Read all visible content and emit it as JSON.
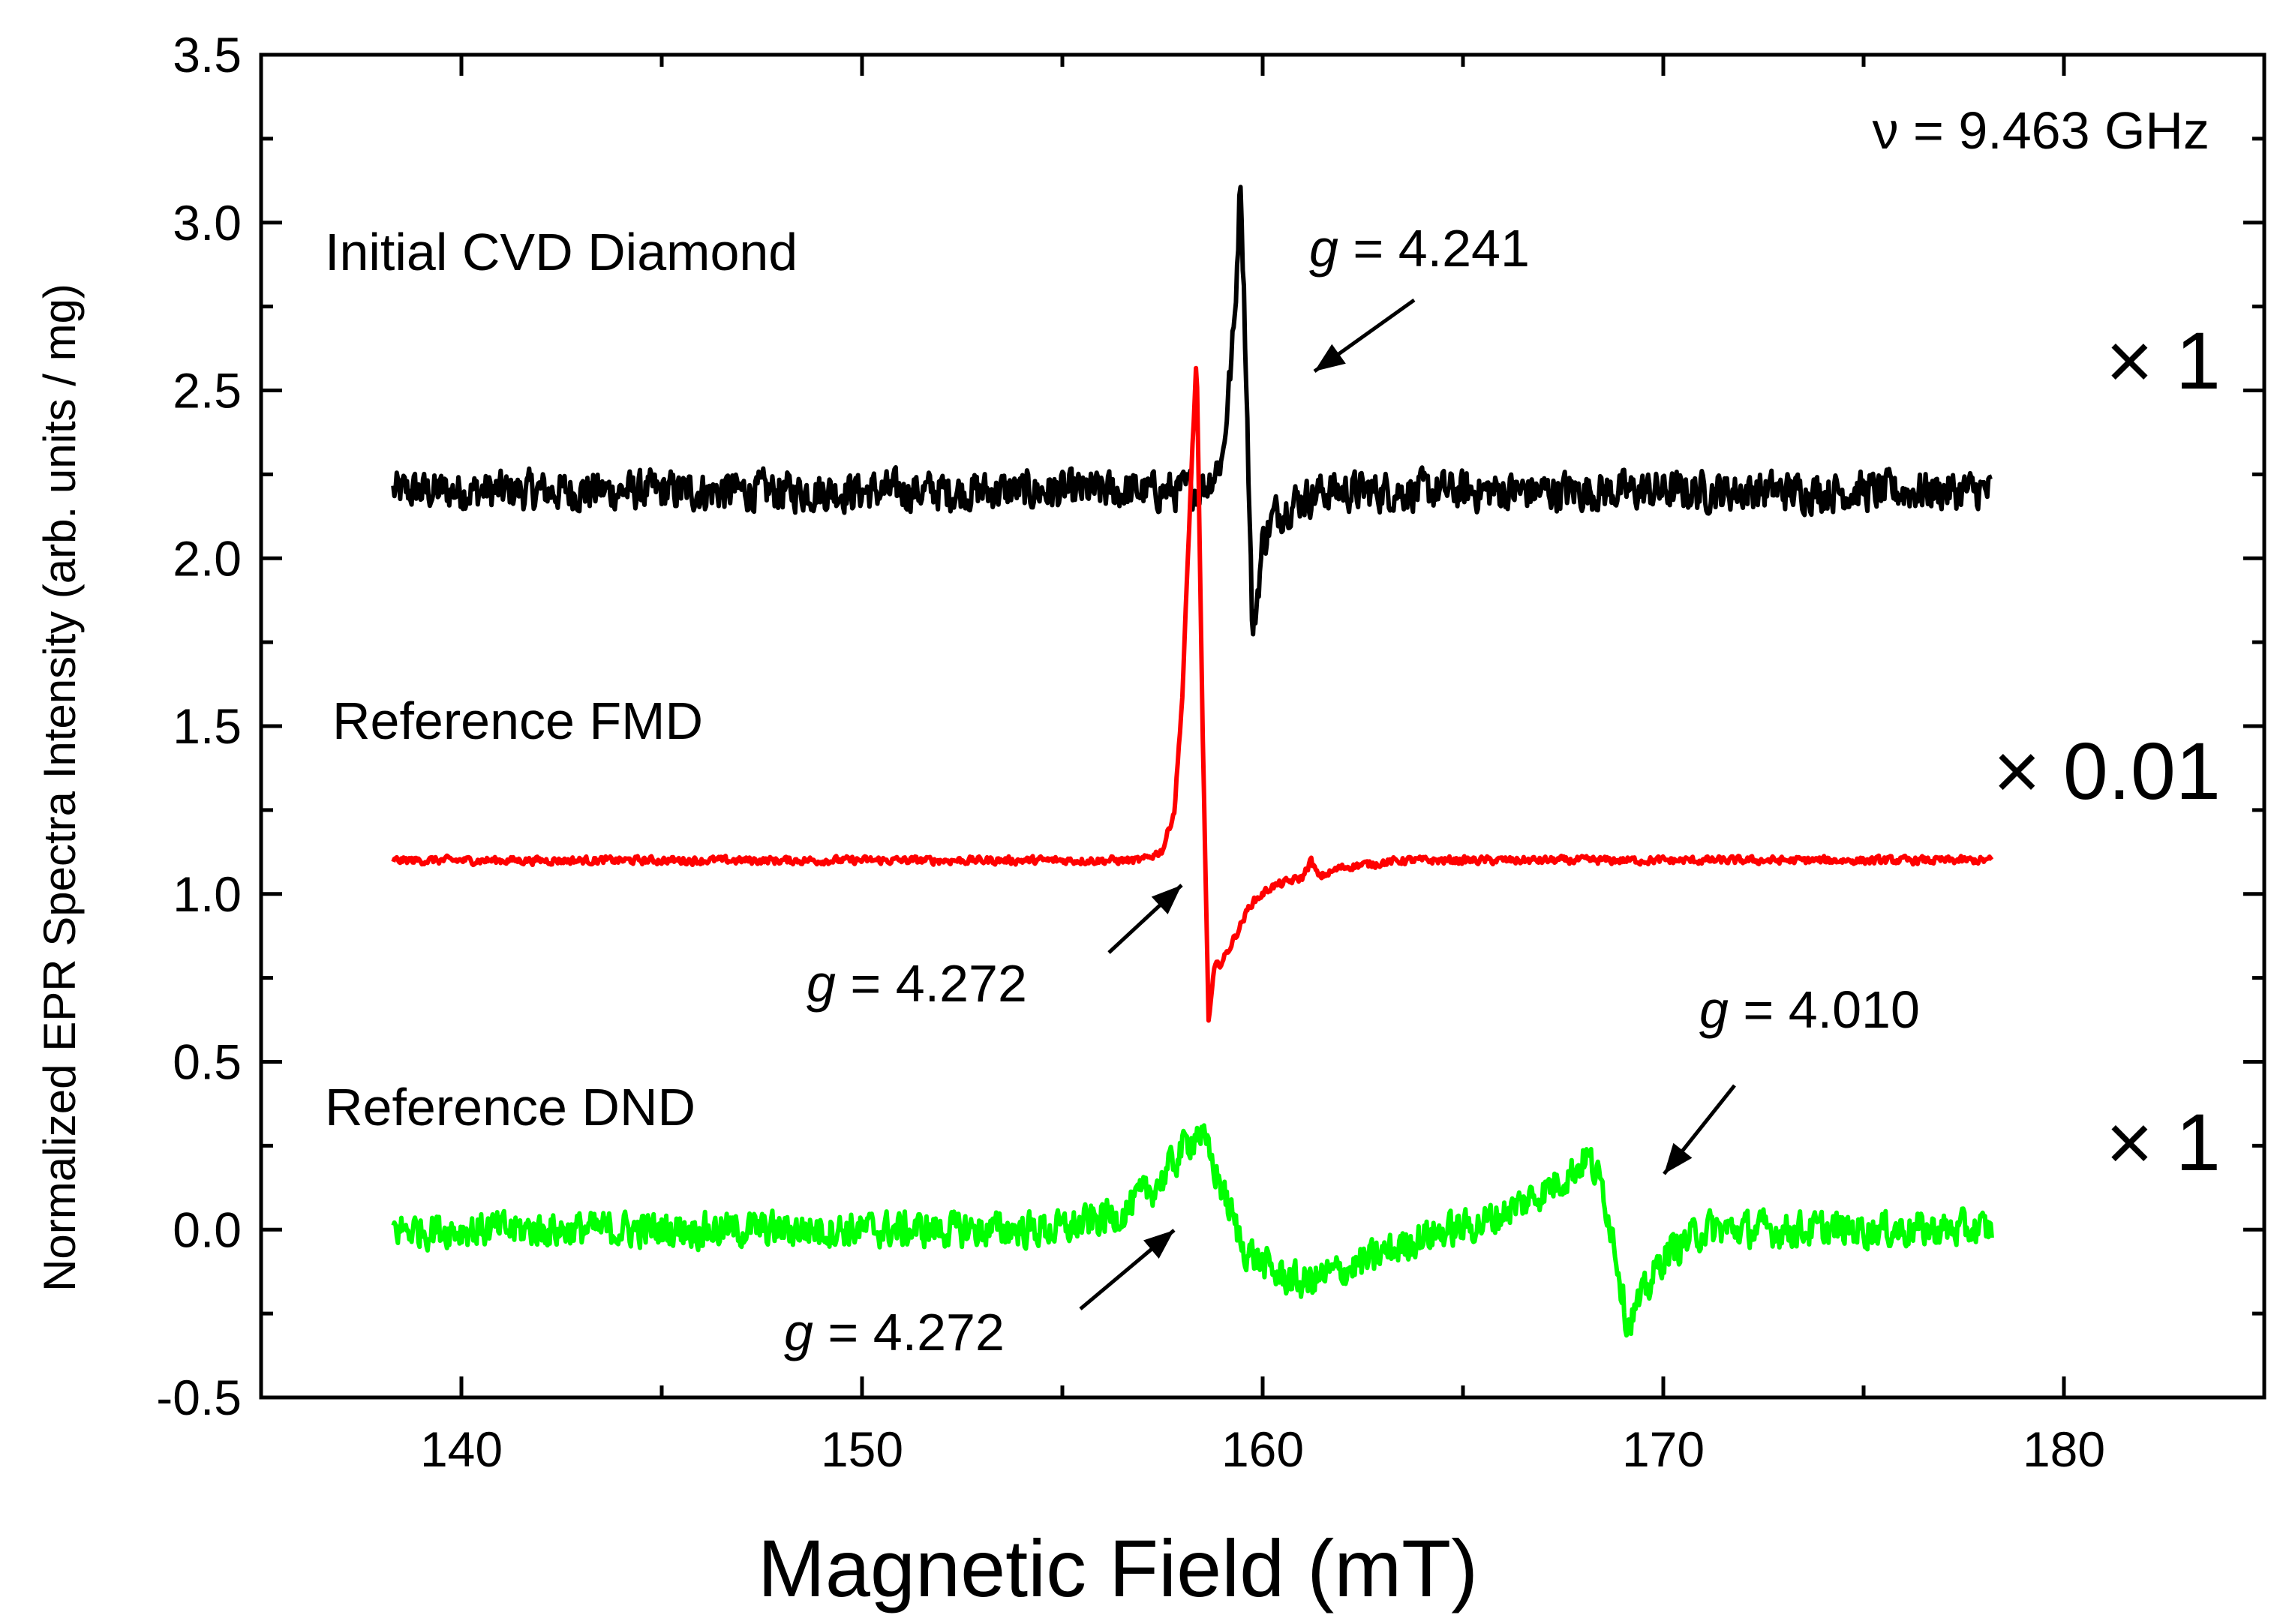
{
  "chart_data": {
    "type": "line",
    "title": "",
    "xlabel": "Magnetic Field (mT)",
    "ylabel": "Normalized EPR Spectra Intensity (arb. units / mg)",
    "xlim": [
      135,
      185
    ],
    "ylim": [
      -0.5,
      3.5
    ],
    "xticks": [
      "140",
      "150",
      "160",
      "170",
      "180"
    ],
    "yticks": [
      "-0.5",
      "0.0",
      "0.5",
      "1.0",
      "1.5",
      "2.0",
      "2.5",
      "3.0",
      "3.5"
    ],
    "frequency_label": "ν = 9.463 GHz",
    "series": [
      {
        "name": "Initial CVD Diamond",
        "color": "#000000",
        "scale": "× 1",
        "baseline": 2.2,
        "noise": 0.05,
        "x": [
          138.3,
          158.0,
          158.6,
          159.0,
          159.3,
          159.45,
          159.6,
          159.75,
          160.0,
          160.3,
          160.8,
          161.5,
          178.2
        ],
        "y": [
          2.2,
          2.2,
          2.22,
          2.3,
          2.7,
          3.15,
          2.5,
          1.75,
          2.05,
          2.13,
          2.17,
          2.2,
          2.2
        ],
        "annotation": {
          "text": "4.241",
          "g": "g",
          "eq": " = ",
          "x": 159.5,
          "y": 3.05
        }
      },
      {
        "name": "Reference FMD",
        "color": "#ff0000",
        "scale": "× 0.01",
        "baseline": 1.1,
        "noise": 0.01,
        "x": [
          138.3,
          157.0,
          157.5,
          157.8,
          158.0,
          158.2,
          158.35,
          158.5,
          158.65,
          158.8,
          159.0,
          159.3,
          159.7,
          160.2,
          161.0,
          161.2,
          161.4,
          162.0,
          163.5,
          178.2
        ],
        "y": [
          1.1,
          1.1,
          1.13,
          1.25,
          1.6,
          2.2,
          2.6,
          1.5,
          0.62,
          0.78,
          0.8,
          0.87,
          0.97,
          1.02,
          1.05,
          1.1,
          1.05,
          1.08,
          1.1,
          1.1
        ],
        "annotation": {
          "text": "4.272",
          "g": "g",
          "eq": " = ",
          "x": 158.0,
          "y": 1.1
        }
      },
      {
        "name": "Reference DND",
        "color": "#00ff00",
        "scale": "× 1",
        "baseline": 0.0,
        "noise": 0.045,
        "x": [
          138.3,
          155.0,
          156.5,
          157.5,
          158.0,
          158.4,
          158.9,
          159.5,
          160.3,
          161.0,
          162.5,
          164.0,
          165.5,
          166.5,
          167.2,
          167.8,
          168.1,
          168.5,
          168.8,
          169.1,
          169.5,
          170.0,
          171.0,
          172.0,
          178.2
        ],
        "y": [
          0.0,
          0.0,
          0.05,
          0.15,
          0.24,
          0.3,
          0.15,
          -0.05,
          -0.13,
          -0.16,
          -0.1,
          -0.02,
          0.02,
          0.08,
          0.13,
          0.18,
          0.22,
          0.12,
          -0.05,
          -0.28,
          -0.2,
          -0.08,
          0.0,
          0.0,
          0.0
        ],
        "annotation_left": {
          "text": "4.272",
          "g": "g",
          "eq": " = ",
          "x": 158.0,
          "y": 0.0
        },
        "annotation_right": {
          "text": "4.010",
          "g": "g",
          "eq": " = ",
          "x": 169.7,
          "y": 0.17
        }
      }
    ]
  }
}
